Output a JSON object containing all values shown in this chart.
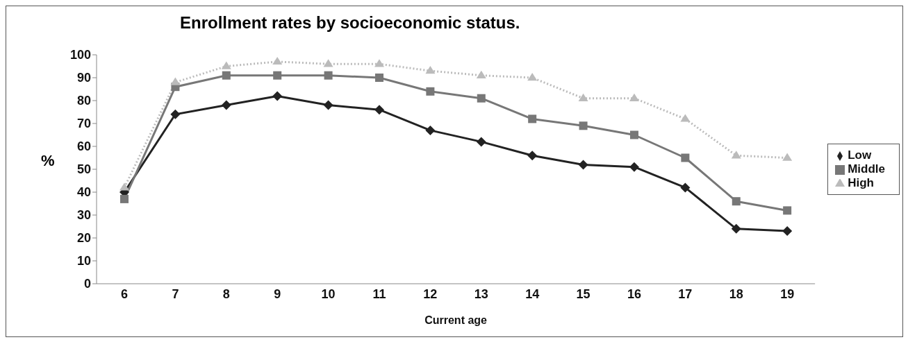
{
  "chart_data": {
    "type": "line",
    "title": "Enrollment rates by socioeconomic status.",
    "xlabel": "Current age",
    "ylabel": "%",
    "categories": [
      "6",
      "7",
      "8",
      "9",
      "10",
      "11",
      "12",
      "13",
      "14",
      "15",
      "16",
      "17",
      "18",
      "19"
    ],
    "series": [
      {
        "name": "Low",
        "color": "#222222",
        "marker": "diamond",
        "line_style": "solid",
        "values": [
          40,
          74,
          78,
          82,
          78,
          76,
          67,
          62,
          56,
          52,
          51,
          42,
          24,
          23
        ]
      },
      {
        "name": "Middle",
        "color": "#777777",
        "marker": "square",
        "line_style": "solid",
        "values": [
          37,
          86,
          91,
          91,
          91,
          90,
          84,
          81,
          72,
          69,
          65,
          55,
          36,
          32
        ]
      },
      {
        "name": "High",
        "color": "#bbbbbb",
        "marker": "triangle",
        "line_style": "dotted",
        "values": [
          42,
          88,
          95,
          97,
          96,
          96,
          93,
          91,
          90,
          81,
          81,
          72,
          56,
          55
        ]
      }
    ],
    "ylim": [
      0,
      100
    ],
    "yticks": [
      0,
      10,
      20,
      30,
      40,
      50,
      60,
      70,
      80,
      90,
      100
    ],
    "grid": false,
    "legend": "right"
  }
}
